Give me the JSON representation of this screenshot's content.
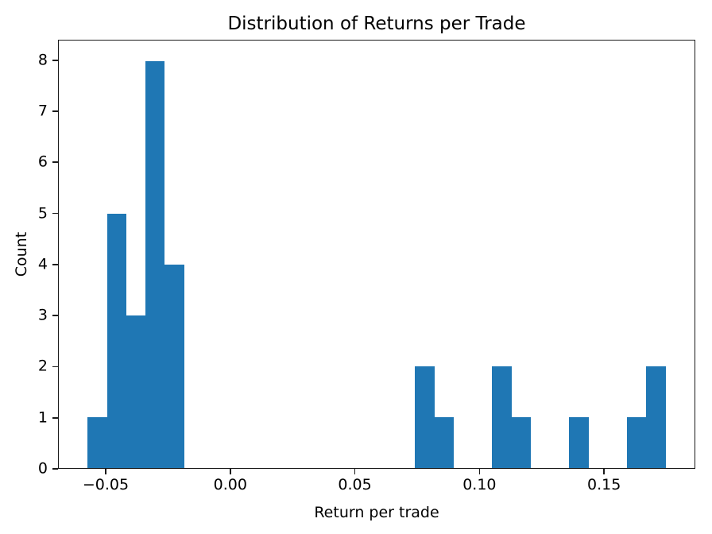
{
  "chart_data": {
    "type": "bar",
    "subtype": "histogram",
    "title": "Distribution of Returns per Trade",
    "xlabel": "Return per trade",
    "ylabel": "Count",
    "bar_color": "#1f77b4",
    "axis_color": "#1a1a1a",
    "grid": false,
    "legend": null,
    "bin_edges": [
      -0.0575,
      -0.04975,
      -0.042,
      -0.03425,
      -0.0265,
      -0.01875,
      -0.011,
      -0.00325,
      0.0045,
      0.01225,
      0.02,
      0.02775,
      0.0355,
      0.04325,
      0.051,
      0.05875,
      0.0665,
      0.07425,
      0.082,
      0.08975,
      0.0975,
      0.10525,
      0.113,
      0.12075,
      0.1285,
      0.13625,
      0.144,
      0.15175,
      0.1595,
      0.16725,
      0.175
    ],
    "counts": [
      1,
      5,
      3,
      8,
      4,
      0,
      0,
      0,
      0,
      0,
      0,
      0,
      0,
      0,
      0,
      0,
      0,
      2,
      1,
      0,
      0,
      2,
      1,
      0,
      0,
      1,
      0,
      0,
      1,
      2
    ],
    "xlim": [
      -0.069125,
      0.186625
    ],
    "ylim": [
      0,
      8.4
    ],
    "xticks": {
      "values": [
        -0.05,
        0.0,
        0.05,
        0.1,
        0.15
      ],
      "labels": [
        "−0.05",
        "0.00",
        "0.05",
        "0.10",
        "0.15"
      ]
    },
    "yticks": {
      "values": [
        0,
        1,
        2,
        3,
        4,
        5,
        6,
        7,
        8
      ],
      "labels": [
        "0",
        "1",
        "2",
        "3",
        "4",
        "5",
        "6",
        "7",
        "8"
      ]
    }
  }
}
